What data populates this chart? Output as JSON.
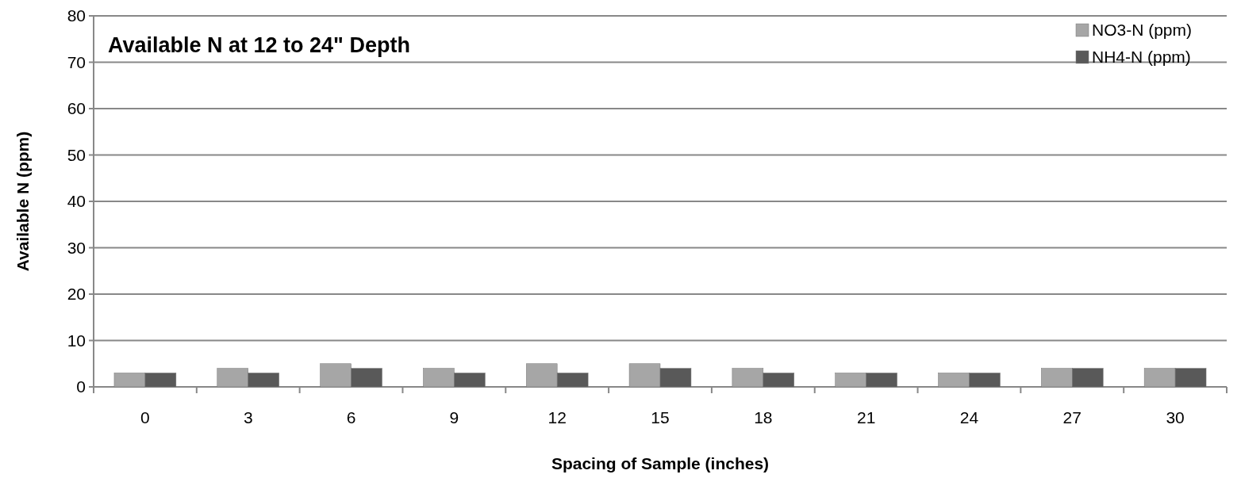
{
  "chart_data": {
    "type": "bar",
    "title": "Available N at 12 to 24\" Depth",
    "xlabel": "Spacing of Sample (inches)",
    "ylabel": "Available  N (ppm)",
    "categories": [
      "0",
      "3",
      "6",
      "9",
      "12",
      "15",
      "18",
      "21",
      "24",
      "27",
      "30"
    ],
    "series": [
      {
        "name": "NO3-N (ppm)",
        "color": "#a6a6a6",
        "values": [
          3,
          4,
          5,
          4,
          5,
          5,
          4,
          3,
          3,
          4,
          4
        ]
      },
      {
        "name": "NH4-N (ppm)",
        "color": "#595959",
        "values": [
          3,
          3,
          4,
          3,
          3,
          4,
          3,
          3,
          3,
          4,
          4
        ]
      }
    ],
    "ylim": [
      0,
      80
    ],
    "yticks": [
      0,
      10,
      20,
      30,
      40,
      50,
      60,
      70,
      80
    ],
    "grid": "y",
    "legend": "top right"
  }
}
